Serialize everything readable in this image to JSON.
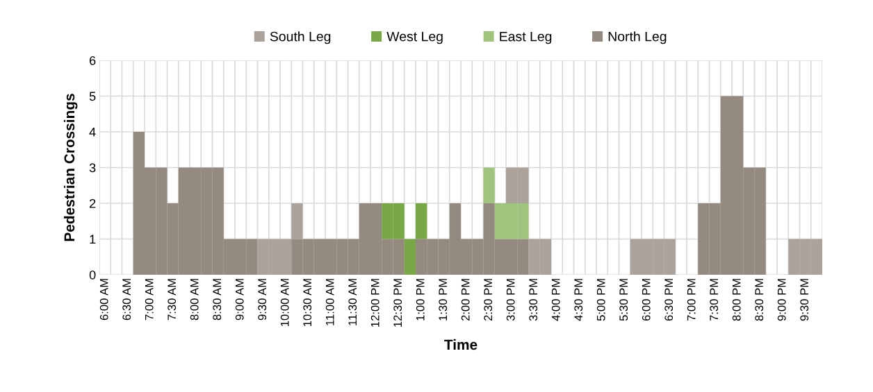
{
  "chart_data": {
    "type": "bar",
    "stacked": true,
    "xlabel": "Time",
    "ylabel": "Pedestrian Crossings",
    "categories": [
      "6:00 AM",
      null,
      "6:30 AM",
      null,
      "7:00 AM",
      null,
      "7:30 AM",
      null,
      "8:00 AM",
      null,
      "8:30 AM",
      null,
      "9:00 AM",
      null,
      "9:30 AM",
      null,
      "10:00 AM",
      null,
      "10:30 AM",
      null,
      "11:00 AM",
      null,
      "11:30 AM",
      null,
      "12:00 PM",
      null,
      "12:30 PM",
      null,
      "1:00 PM",
      null,
      "1:30 PM",
      null,
      "2:00 PM",
      null,
      "2:30 PM",
      null,
      "3:00 PM",
      null,
      "3:30 PM",
      null,
      "4:00 PM",
      null,
      "4:30 PM",
      null,
      "5:00 PM",
      null,
      "5:30 PM",
      null,
      "6:00 PM",
      null,
      "6:30 PM",
      null,
      "7:00 PM",
      null,
      "7:30 PM",
      null,
      "8:00 PM",
      null,
      "8:30 PM",
      null,
      "9:00 PM",
      null,
      "9:30 PM",
      null
    ],
    "series": [
      {
        "name": "North Leg",
        "color": "#958a80",
        "values": [
          0,
          0,
          0,
          4,
          3,
          3,
          2,
          3,
          3,
          3,
          3,
          1,
          1,
          1,
          0,
          0,
          0,
          1,
          1,
          1,
          1,
          1,
          1,
          2,
          2,
          1,
          1,
          0,
          1,
          1,
          1,
          2,
          1,
          1,
          2,
          1,
          1,
          1,
          0,
          0,
          0,
          0,
          0,
          0,
          0,
          0,
          0,
          0,
          0,
          0,
          0,
          0,
          0,
          2,
          2,
          5,
          5,
          3,
          3,
          0,
          0,
          0,
          0,
          0
        ]
      },
      {
        "name": "East Leg",
        "color": "#a0c47e",
        "values": [
          0,
          0,
          0,
          0,
          0,
          0,
          0,
          0,
          0,
          0,
          0,
          0,
          0,
          0,
          0,
          0,
          0,
          0,
          0,
          0,
          0,
          0,
          0,
          0,
          0,
          0,
          0,
          0,
          0,
          0,
          0,
          0,
          0,
          0,
          1,
          1,
          1,
          1,
          0,
          0,
          0,
          0,
          0,
          0,
          0,
          0,
          0,
          0,
          0,
          0,
          0,
          0,
          0,
          0,
          0,
          0,
          0,
          0,
          0,
          0,
          0,
          0,
          0,
          0
        ]
      },
      {
        "name": "West Leg",
        "color": "#78a846",
        "values": [
          0,
          0,
          0,
          0,
          0,
          0,
          0,
          0,
          0,
          0,
          0,
          0,
          0,
          0,
          0,
          0,
          0,
          0,
          0,
          0,
          0,
          0,
          0,
          0,
          0,
          1,
          1,
          1,
          1,
          0,
          0,
          0,
          0,
          0,
          0,
          0,
          0,
          0,
          0,
          0,
          0,
          0,
          0,
          0,
          0,
          0,
          0,
          0,
          0,
          0,
          0,
          0,
          0,
          0,
          0,
          0,
          0,
          0,
          0,
          0,
          0,
          0,
          0,
          0
        ]
      },
      {
        "name": "South Leg",
        "color": "#aaa29b",
        "values": [
          0,
          0,
          0,
          0,
          0,
          0,
          0,
          0,
          0,
          0,
          0,
          0,
          0,
          0,
          1,
          1,
          1,
          1,
          0,
          0,
          0,
          0,
          0,
          0,
          0,
          0,
          0,
          0,
          0,
          0,
          0,
          0,
          0,
          0,
          0,
          0,
          1,
          1,
          1,
          1,
          0,
          0,
          0,
          0,
          0,
          0,
          0,
          1,
          1,
          1,
          1,
          0,
          0,
          0,
          0,
          0,
          0,
          0,
          0,
          0,
          0,
          1,
          1,
          1
        ]
      }
    ],
    "ylim": [
      0,
      6
    ],
    "yticks": [
      0,
      1,
      2,
      3,
      4,
      5,
      6
    ],
    "grid": true,
    "legend": "top"
  }
}
